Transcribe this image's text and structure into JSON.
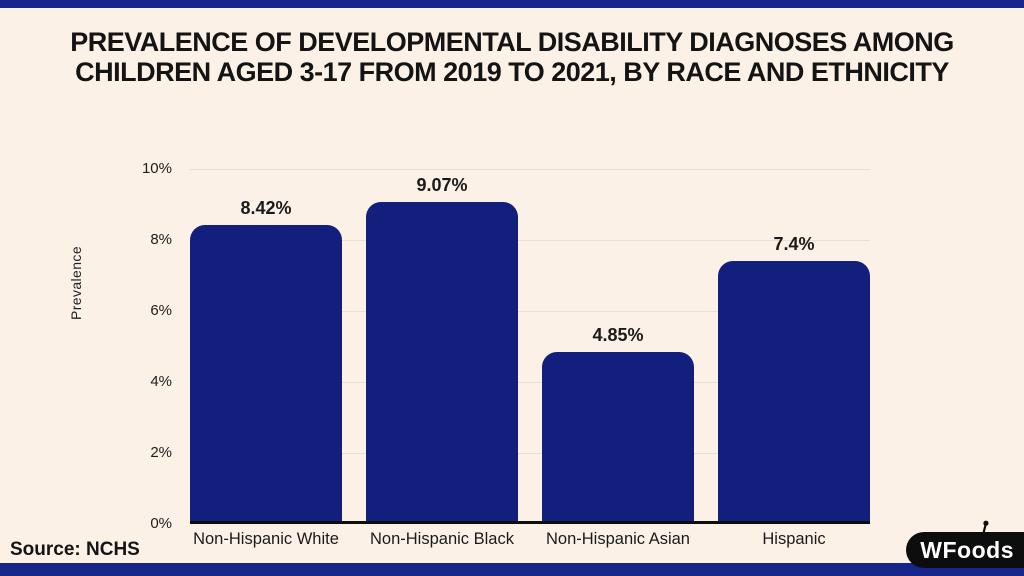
{
  "page": {
    "background_color": "#fcf1e6",
    "strip_color": "#18258b",
    "text_color": "#141414"
  },
  "title": {
    "line1": "PREVALENCE OF DEVELOPMENTAL DISABILITY DIAGNOSES AMONG",
    "line2": "CHILDREN AGED 3-17 FROM 2019 TO 2021, BY RACE AND ETHNICITY"
  },
  "source": {
    "label": "Source: NCHS"
  },
  "logo": {
    "text": "WFoods",
    "icon": "fork-icon",
    "background": "#0d0d0d"
  },
  "chart_data": {
    "type": "bar",
    "title": "Prevalence of developmental disability diagnoses among children aged 3-17 from 2019 to 2021, by race and ethnicity",
    "categories": [
      "Non-Hispanic White",
      "Non-Hispanic Black",
      "Non-Hispanic Asian",
      "Hispanic"
    ],
    "values": [
      8.42,
      9.07,
      4.85,
      7.4
    ],
    "value_labels": [
      "8.42%",
      "9.07%",
      "4.85%",
      "7.4%"
    ],
    "xlabel": "",
    "ylabel": "Prevalence",
    "ylim": [
      0,
      10
    ],
    "yticks": [
      "0%",
      "2%",
      "4%",
      "6%",
      "8%",
      "10%"
    ],
    "grid": true,
    "legend": false,
    "bar_color": "#131f7c",
    "gridline_color": "#e8dfd7"
  }
}
